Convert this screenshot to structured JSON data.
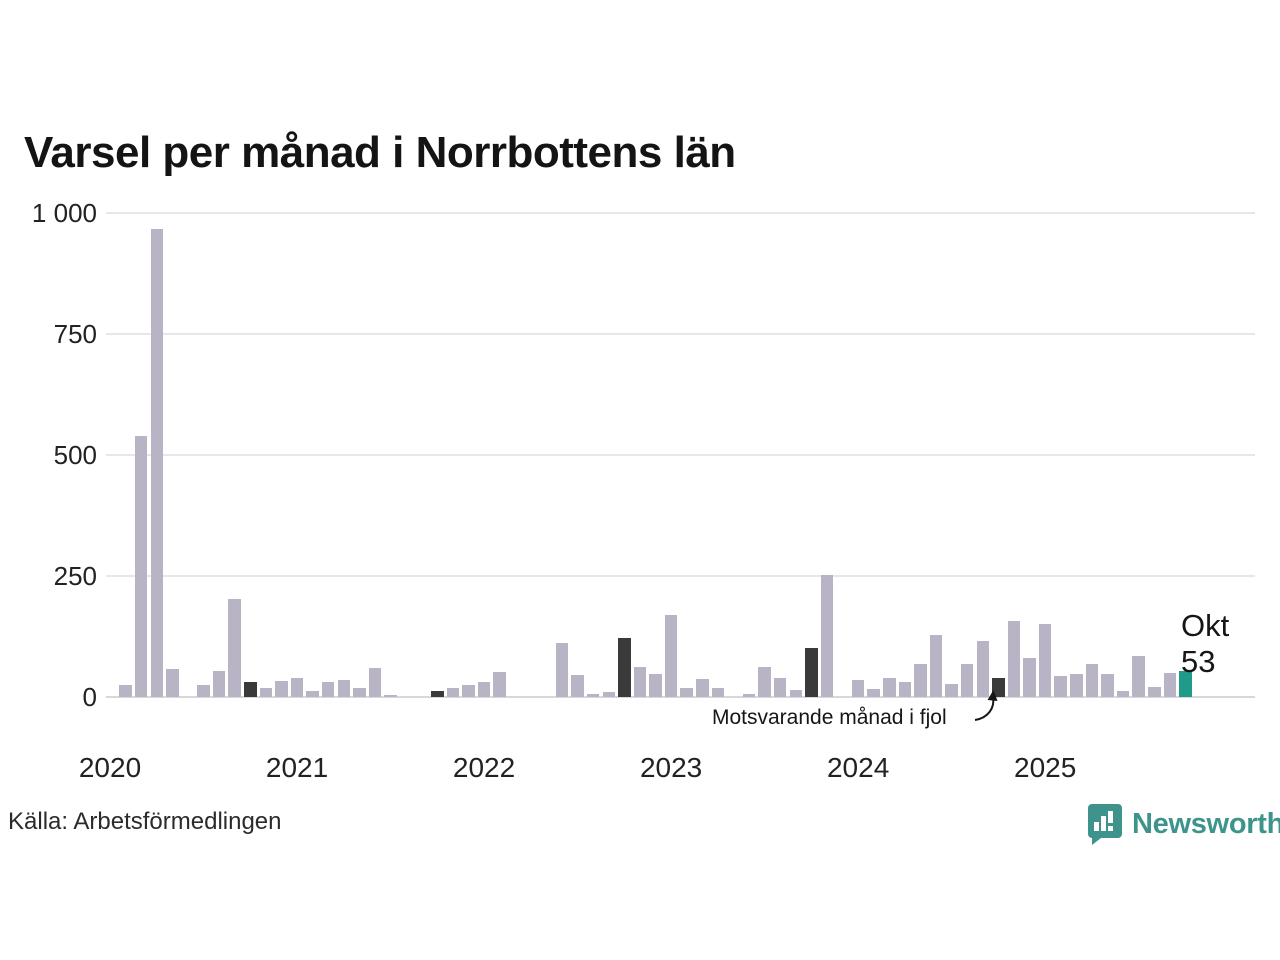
{
  "chart_data": {
    "type": "bar",
    "title": "Varsel per månad i Norrbottens län",
    "x_start_month": "2020-01",
    "x_end_month": "2025-10",
    "series": [
      {
        "name": "Varsel per månad",
        "values": [
          0,
          24,
          540,
          967,
          58,
          0,
          25,
          53,
          202,
          31,
          18,
          34,
          39,
          12,
          32,
          36,
          18,
          60,
          5,
          0,
          0,
          12,
          19,
          25,
          30,
          52,
          0,
          0,
          0,
          112,
          45,
          6,
          10,
          122,
          62,
          48,
          169,
          19,
          37,
          19,
          0,
          6,
          63,
          39,
          14,
          102,
          252,
          0,
          36,
          17,
          39,
          32,
          68,
          128,
          26,
          68,
          115,
          40,
          157,
          81,
          151,
          43,
          48,
          69,
          47,
          13,
          85,
          21,
          50,
          53
        ]
      }
    ],
    "year_tick_labels": [
      "2020",
      "2021",
      "2022",
      "2023",
      "2024",
      "2025"
    ],
    "y_ticks": [
      {
        "label": "0",
        "value": 0
      },
      {
        "label": "250",
        "value": 250
      },
      {
        "label": "500",
        "value": 500
      },
      {
        "label": "750",
        "value": 750
      },
      {
        "label": "1 000",
        "value": 1000
      }
    ],
    "ylim": [
      0,
      1000
    ],
    "grid": true,
    "legend": "none",
    "highlight_last_year_indices": [
      9,
      21,
      33,
      45,
      57
    ],
    "current_index": 69,
    "annotation": {
      "text": "Motsvarande månad i fjol",
      "points_to": "2024-10"
    },
    "current_label": {
      "month": "Okt",
      "value": "53"
    },
    "colors": {
      "bar": "#b9b3c6",
      "last_year_bar": "#3a3a3a",
      "current_bar": "#1e9c89",
      "gridline": "#e7e6ea",
      "text": "#161616"
    }
  },
  "footer": {
    "source": "Källa: Arbetsförmedlingen",
    "logo_text": "Newsworthy",
    "logo_color": "#3e948c"
  }
}
